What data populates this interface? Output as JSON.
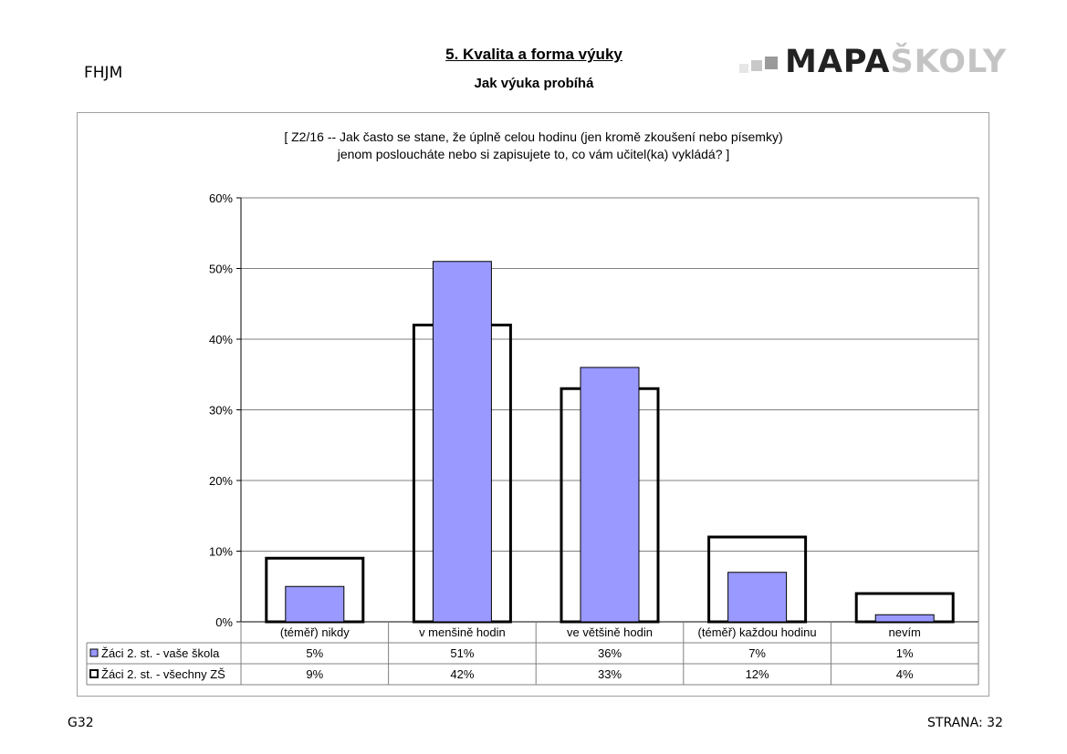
{
  "header": {
    "code": "FHJM",
    "title": "5. Kvalita a forma výuky",
    "subtitle": "Jak výuka probíhá",
    "logo": {
      "part1": "MAPA",
      "part2": "ŠKOLY"
    }
  },
  "footer": {
    "left": "G32",
    "right": "STRANA: 32"
  },
  "chart_data": {
    "type": "bar",
    "title_lines": [
      "[ Z2/16 -- Jak často se stane, že úplně celou hodinu (jen kromě zkoušení nebo písemky)",
      "jenom posloucháte nebo si zapisujete to, co vám učitel(ka) vykládá? ]"
    ],
    "categories": [
      "(téměř) nikdy",
      "v menšině hodin",
      "ve většině hodin",
      "(téměř) každou hodinu",
      "nevím"
    ],
    "series": [
      {
        "name": "Žáci 2. st. - vaše škola",
        "values": [
          5,
          51,
          36,
          7,
          1
        ],
        "labels": [
          "5%",
          "51%",
          "36%",
          "7%",
          "1%"
        ],
        "color": "#9999ff"
      },
      {
        "name": "Žáci 2. st. - všechny ZŠ",
        "values": [
          9,
          42,
          33,
          12,
          4
        ],
        "labels": [
          "9%",
          "42%",
          "33%",
          "12%",
          "4%"
        ],
        "color": "#ffffff"
      }
    ],
    "yticks": [
      "0%",
      "10%",
      "20%",
      "30%",
      "40%",
      "50%",
      "60%"
    ],
    "ylim": [
      0,
      60
    ],
    "grid": true,
    "legend": "data-table"
  }
}
